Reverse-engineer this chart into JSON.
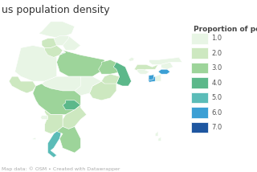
{
  "title": "us population density",
  "legend_title": "Proportion of po",
  "legend_entries": [
    1.0,
    2.0,
    3.0,
    4.0,
    5.0,
    6.0,
    7.0
  ],
  "legend_colors": [
    "#e8f5e5",
    "#cde8c0",
    "#9dd49a",
    "#5cb88a",
    "#5bbcb8",
    "#3b9fd4",
    "#1e56a0"
  ],
  "background_color": "#ffffff",
  "footer_text": "Map data: © OSM • Created with Datawrapper",
  "title_fontsize": 9,
  "footer_fontsize": 4.5,
  "legend_fontsize": 6,
  "legend_title_fontsize": 6.5
}
